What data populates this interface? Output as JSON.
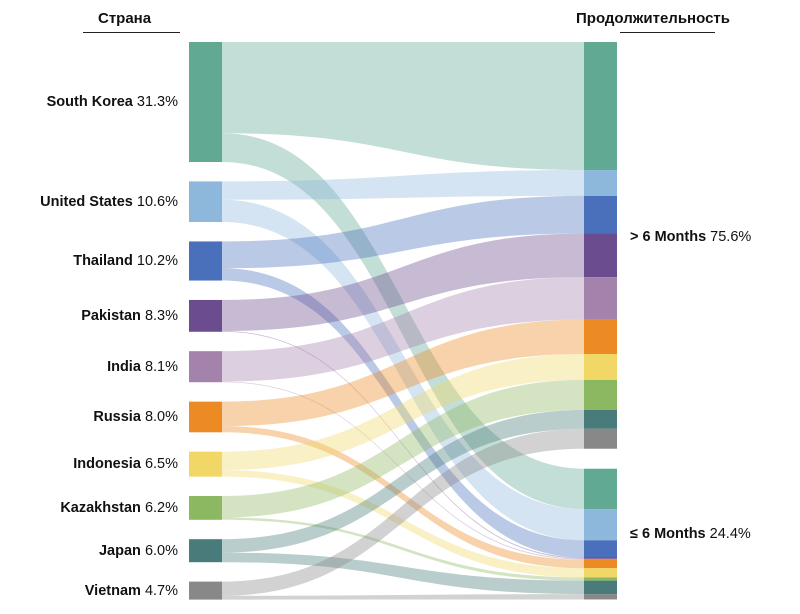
{
  "headers": {
    "source": "Страна",
    "target": "Продолжительность"
  },
  "chart_data": {
    "type": "sankey",
    "sources": [
      {
        "name": "South Korea",
        "pct": "31.3%",
        "value": 31.3,
        "color": "#62a994",
        "flows": [
          23.8,
          7.5
        ]
      },
      {
        "name": "United States",
        "pct": "10.6%",
        "value": 10.6,
        "color": "#8db8dc",
        "flows": [
          4.8,
          5.8
        ]
      },
      {
        "name": "Thailand",
        "pct": "10.2%",
        "value": 10.2,
        "color": "#4a70bb",
        "flows": [
          7.0,
          3.2
        ]
      },
      {
        "name": "Pakistan",
        "pct": "8.3%",
        "value": 8.3,
        "color": "#6b4c8e",
        "flows": [
          8.1,
          0.2
        ]
      },
      {
        "name": "India",
        "pct": "8.1%",
        "value": 8.1,
        "color": "#a382ab",
        "flows": [
          7.9,
          0.2
        ]
      },
      {
        "name": "Russia",
        "pct": "8.0%",
        "value": 8.0,
        "color": "#ec8a23",
        "flows": [
          6.4,
          1.6
        ]
      },
      {
        "name": "Indonesia",
        "pct": "6.5%",
        "value": 6.5,
        "color": "#f0d766",
        "flows": [
          4.8,
          1.7
        ]
      },
      {
        "name": "Kazakhstan",
        "pct": "6.2%",
        "value": 6.2,
        "color": "#8db862",
        "flows": [
          5.6,
          0.6
        ]
      },
      {
        "name": "Japan",
        "pct": "6.0%",
        "value": 6.0,
        "color": "#4a7b7b",
        "flows": [
          3.5,
          2.5
        ]
      },
      {
        "name": "Vietnam",
        "pct": "4.7%",
        "value": 4.7,
        "color": "#888888",
        "flows": [
          3.7,
          1.0
        ]
      }
    ],
    "targets": [
      {
        "name": "> 6 Months",
        "pct": "75.6%",
        "value": 75.6
      },
      {
        "name": "≤ 6 Months",
        "pct": "24.4%",
        "value": 24.4
      }
    ]
  }
}
